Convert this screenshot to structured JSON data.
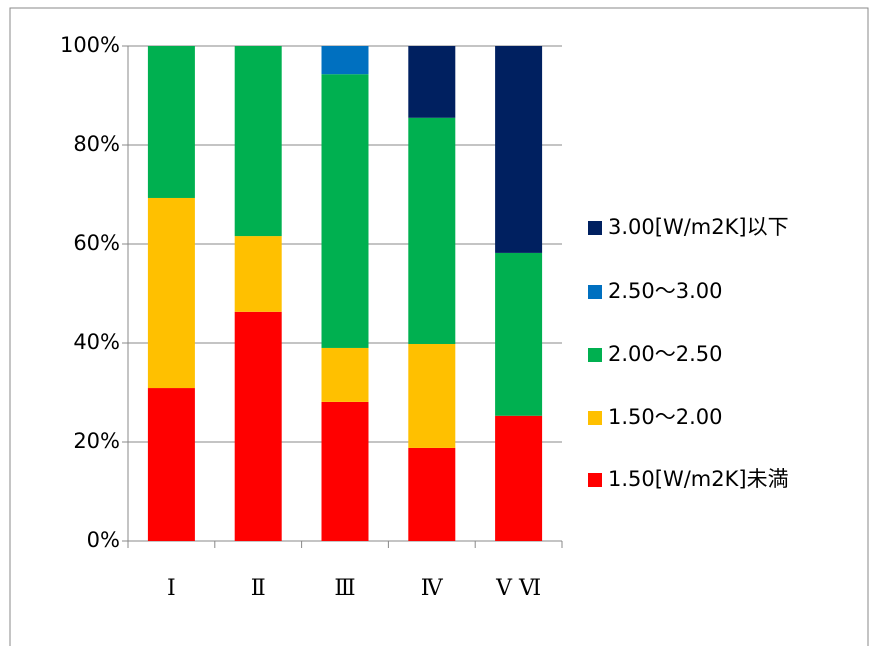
{
  "chart_data": {
    "type": "stacked_bar",
    "categories": [
      "Ⅰ",
      "Ⅱ",
      "Ⅲ",
      "Ⅳ",
      "Ⅴ Ⅵ"
    ],
    "series": [
      {
        "name": "1.50[W/m2K]未満",
        "color": "#ff0000",
        "values": [
          30.9,
          46.3,
          28.1,
          18.8,
          25.3
        ]
      },
      {
        "name": "1.50〜2.00",
        "color": "#ffc000",
        "values": [
          38.4,
          15.3,
          10.9,
          21.0,
          0
        ]
      },
      {
        "name": "2.00〜2.50",
        "color": "#00b050",
        "values": [
          30.7,
          38.4,
          55.3,
          45.7,
          32.9
        ]
      },
      {
        "name": "2.50〜3.00",
        "color": "#0070c0",
        "values": [
          0,
          0,
          5.7,
          0,
          0
        ]
      },
      {
        "name": "3.00[W/m2K]以下",
        "color": "#002060",
        "values": [
          0,
          0,
          0,
          14.5,
          41.8
        ]
      }
    ],
    "ylim": [
      0,
      100
    ],
    "yticks": [
      {
        "value": 0,
        "label": "0%"
      },
      {
        "value": 20,
        "label": "20%"
      },
      {
        "value": 40,
        "label": "40%"
      },
      {
        "value": 60,
        "label": "60%"
      },
      {
        "value": 80,
        "label": "80%"
      },
      {
        "value": 100,
        "label": "100%"
      }
    ],
    "grid": true
  }
}
